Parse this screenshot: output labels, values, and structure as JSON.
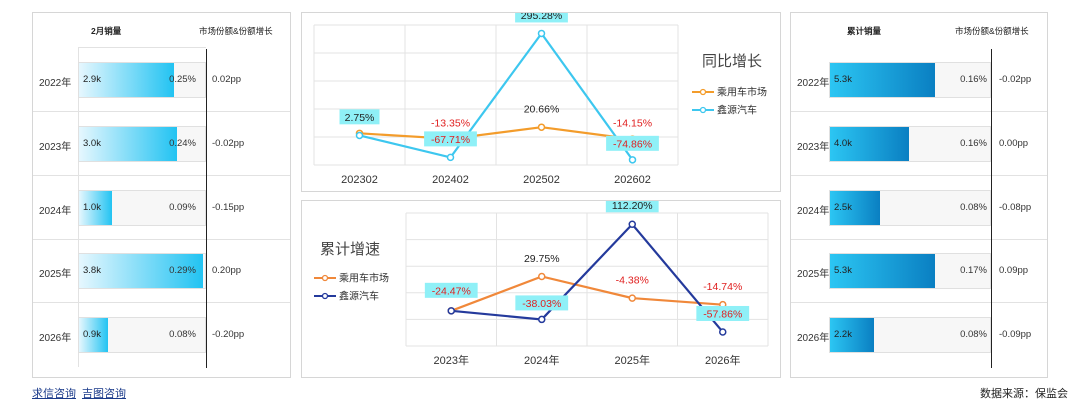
{
  "left": {
    "header_sales": "2月销量",
    "header_share": "市场份额&份额增长",
    "rows": [
      {
        "year": "2022年",
        "sales_label": "2.9k",
        "sales": 2.9,
        "share": "0.25%",
        "share_growth": "0.02pp"
      },
      {
        "year": "2023年",
        "sales_label": "3.0k",
        "sales": 3.0,
        "share": "0.24%",
        "share_growth": "-0.02pp"
      },
      {
        "year": "2024年",
        "sales_label": "1.0k",
        "sales": 1.0,
        "share": "0.09%",
        "share_growth": "-0.15pp"
      },
      {
        "year": "2025年",
        "sales_label": "3.8k",
        "sales": 3.8,
        "share": "0.29%",
        "share_growth": "0.20pp"
      },
      {
        "year": "2026年",
        "sales_label": "0.9k",
        "sales": 0.9,
        "share": "0.08%",
        "share_growth": "-0.20pp"
      }
    ],
    "bar_max": 3.8,
    "fill_gradient": [
      "#e6f7fe",
      "#22c3f2"
    ]
  },
  "right": {
    "header_sales": "累计销量",
    "header_share": "市场份额&份额增长",
    "rows": [
      {
        "year": "2022年",
        "sales_label": "5.3k",
        "sales": 5.3,
        "share": "0.16%",
        "share_growth": "-0.02pp"
      },
      {
        "year": "2023年",
        "sales_label": "4.0k",
        "sales": 4.0,
        "share": "0.16%",
        "share_growth": "0.00pp"
      },
      {
        "year": "2024年",
        "sales_label": "2.5k",
        "sales": 2.5,
        "share": "0.08%",
        "share_growth": "-0.08pp"
      },
      {
        "year": "2025年",
        "sales_label": "5.3k",
        "sales": 5.3,
        "share": "0.17%",
        "share_growth": "0.09pp"
      },
      {
        "year": "2026年",
        "sales_label": "2.2k",
        "sales": 2.2,
        "share": "0.08%",
        "share_growth": "-0.09pp"
      }
    ],
    "bar_max": 5.3,
    "fill_gradient": [
      "#2cc6f3",
      "#0a7fc2"
    ]
  },
  "chart_data": [
    {
      "type": "line",
      "title": "同比增长",
      "categories": [
        "202302",
        "202402",
        "202502",
        "202602"
      ],
      "series": [
        {
          "name": "乘用车市场",
          "color": "#f39c2b",
          "values": [
            2.75,
            -13.35,
            20.66,
            -14.15
          ],
          "labels": [
            "2.75%",
            "-13.35%",
            "20.66%",
            "-14.15%"
          ]
        },
        {
          "name": "鑫源汽车",
          "color": "#3dc7ef",
          "values": [
            -3.5,
            -67.71,
            295.28,
            -74.86
          ],
          "labels": [
            "",
            "-67.71%",
            "295.28%",
            "-74.86%"
          ]
        }
      ],
      "ylim": [
        -90,
        320
      ],
      "grid": true,
      "legend": "right"
    },
    {
      "type": "line",
      "title": "累计增速",
      "categories": [
        "2023年",
        "2024年",
        "2025年",
        "2026年"
      ],
      "series": [
        {
          "name": "乘用车市场",
          "color": "#f0883a",
          "values": [
            -24.47,
            29.75,
            -4.38,
            -14.74
          ],
          "labels": [
            "",
            "29.75%",
            "-4.38%",
            "-14.74%"
          ]
        },
        {
          "name": "鑫源汽车",
          "color": "#243a9c",
          "values": [
            -24.47,
            -38.03,
            112.2,
            -57.86
          ],
          "labels": [
            "-24.47%",
            "-38.03%",
            "112.20%",
            "-57.86%"
          ]
        }
      ],
      "ylim": [
        -80,
        130
      ],
      "grid": true,
      "legend": "left"
    }
  ],
  "footer": {
    "link1": "求信咨询",
    "link2": "吉图咨询",
    "source": "数据来源：保监会"
  }
}
